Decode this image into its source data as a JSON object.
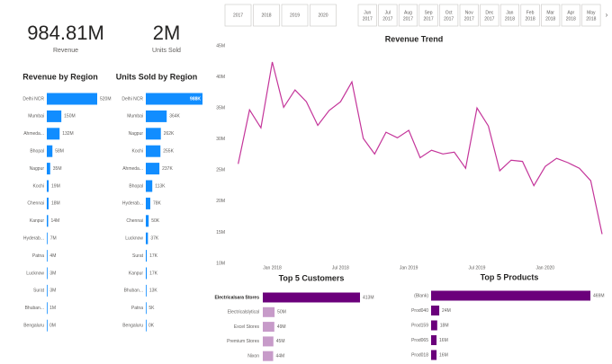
{
  "cards": [
    {
      "value": "984.81M",
      "label": "Revenue"
    },
    {
      "value": "2M",
      "label": "Units Sold"
    }
  ],
  "slicers": {
    "years": [
      "2017",
      "2018",
      "2019",
      "2020"
    ],
    "months": [
      {
        "month": "Jun",
        "year": "2017"
      },
      {
        "month": "Jul",
        "year": "2017"
      },
      {
        "month": "Aug",
        "year": "2017"
      },
      {
        "month": "Sep",
        "year": "2017"
      },
      {
        "month": "Oct",
        "year": "2017"
      },
      {
        "month": "Nov",
        "year": "2017"
      },
      {
        "month": "Dec",
        "year": "2017"
      },
      {
        "month": "Jan",
        "year": "2018"
      },
      {
        "month": "Feb",
        "year": "2018"
      },
      {
        "month": "Mar",
        "year": "2018"
      },
      {
        "month": "Apr",
        "year": "2018"
      },
      {
        "month": "May",
        "year": "2018"
      }
    ]
  },
  "chart_data": [
    {
      "type": "bar",
      "title": "Revenue by Region",
      "color": "#118dff",
      "categories": [
        "Delhi NCR",
        "Mumbai",
        "Ahmeda...",
        "Bhopal",
        "Nagpur",
        "Kochi",
        "Chennai",
        "Kanpur",
        "Hyderab...",
        "Patna",
        "Lucknow",
        "Surat",
        "Bhuban...",
        "Bengaluru"
      ],
      "values": [
        520,
        150,
        132,
        58,
        35,
        19,
        18,
        14,
        7,
        4,
        3,
        3,
        1,
        0
      ],
      "value_labels": [
        "520M",
        "150M",
        "132M",
        "58M",
        "35M",
        "19M",
        "18M",
        "14M",
        "7M",
        "4M",
        "3M",
        "3M",
        "1M",
        "0M"
      ]
    },
    {
      "type": "bar",
      "title": "Units Sold by Region",
      "color": "#118dff",
      "categories": [
        "Delhi NCR",
        "Mumbai",
        "Nagpur",
        "Kochi",
        "Ahmeda...",
        "Bhopal",
        "Hyderab...",
        "Chennai",
        "Lucknow",
        "Surat",
        "Kanpur",
        "Bhuban...",
        "Patna",
        "Bengaluru"
      ],
      "values": [
        988,
        364,
        262,
        255,
        237,
        113,
        78,
        50,
        37,
        17,
        17,
        13,
        5,
        0
      ],
      "value_labels": [
        "988K",
        "364K",
        "262K",
        "255K",
        "237K",
        "113K",
        "78K",
        "50K",
        "37K",
        "17K",
        "17K",
        "13K",
        "5K",
        "0K"
      ]
    },
    {
      "type": "line",
      "title": "Revenue Trend",
      "color": "#c4359a",
      "grid": false,
      "x": [
        "2017-10",
        "2017-11",
        "2017-12",
        "2018-01",
        "2018-02",
        "2018-03",
        "2018-04",
        "2018-05",
        "2018-06",
        "2018-07",
        "2018-08",
        "2018-09",
        "2018-10",
        "2018-11",
        "2018-12",
        "2019-01",
        "2019-02",
        "2019-03",
        "2019-04",
        "2019-05",
        "2019-06",
        "2019-07",
        "2019-08",
        "2019-09",
        "2019-10",
        "2019-11",
        "2019-12",
        "2020-01",
        "2020-02",
        "2020-03",
        "2020-04",
        "2020-05",
        "2020-06"
      ],
      "values": [
        26.0,
        34.7,
        31.8,
        42.4,
        35.1,
        37.9,
        36.0,
        32.2,
        34.6,
        36.0,
        39.2,
        30.1,
        27.6,
        31.1,
        30.2,
        31.4,
        27.0,
        28.2,
        27.6,
        27.9,
        25.3,
        35.0,
        32.1,
        24.9,
        26.6,
        26.4,
        22.5,
        25.6,
        26.9,
        26.2,
        25.3,
        23.3,
        14.7
      ],
      "xlim": [
        "2017-09",
        "2020-06"
      ],
      "xticks": [
        {
          "value": "2018-01",
          "label": "Jan 2018"
        },
        {
          "value": "2018-07",
          "label": "Jul 2018"
        },
        {
          "value": "2019-01",
          "label": "Jan 2019"
        },
        {
          "value": "2019-07",
          "label": "Jul 2019"
        },
        {
          "value": "2020-01",
          "label": "Jan 2020"
        }
      ],
      "ylim": [
        10,
        45
      ],
      "yticks": [
        {
          "value": 10,
          "label": "10M"
        },
        {
          "value": 15,
          "label": "15M"
        },
        {
          "value": 20,
          "label": "20M"
        },
        {
          "value": 25,
          "label": "25M"
        },
        {
          "value": 30,
          "label": "30M"
        },
        {
          "value": 35,
          "label": "35M"
        },
        {
          "value": 40,
          "label": "40M"
        },
        {
          "value": 45,
          "label": "45M"
        }
      ]
    },
    {
      "type": "bar",
      "title": "Top 5 Customers",
      "categories": [
        "Electricalsara Stores",
        "Electricalslytical",
        "Excel Stores",
        "Premium Stores",
        "Nixon"
      ],
      "colors": [
        "#6b007b",
        "#c79bc9",
        "#c79bc9",
        "#c79bc9",
        "#c79bc9"
      ],
      "values": [
        413,
        50,
        49,
        45,
        44
      ],
      "value_labels": [
        "413M",
        "50M",
        "49M",
        "45M",
        "44M"
      ]
    },
    {
      "type": "bar",
      "title": "Top 5 Products",
      "color": "#6b007b",
      "categories": [
        "(Blank)",
        "Prod040",
        "Prod159",
        "Prod065",
        "Prod018"
      ],
      "values": [
        469,
        24,
        18,
        16,
        16
      ],
      "value_labels": [
        "469M",
        "24M",
        "18M",
        "16M",
        "16M"
      ]
    }
  ]
}
